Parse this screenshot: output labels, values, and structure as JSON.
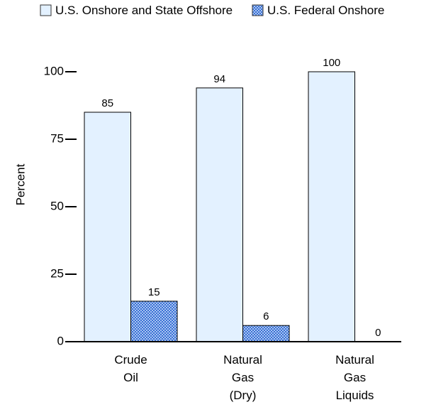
{
  "chart_data": {
    "type": "bar",
    "categories": [
      "Crude Oil",
      "Natural Gas (Dry)",
      "Natural Gas Liquids"
    ],
    "series": [
      {
        "name": "U.S. Onshore and State Offshore",
        "color": "#e3f1ff",
        "values": [
          85,
          94,
          100
        ]
      },
      {
        "name": "U.S. Federal Onshore",
        "color": "#4a7fd8",
        "values": [
          15,
          6,
          0
        ]
      }
    ],
    "y_label": "Percent",
    "ylim": [
      0,
      100
    ],
    "yticks": [
      0,
      25,
      50,
      75,
      100
    ]
  }
}
